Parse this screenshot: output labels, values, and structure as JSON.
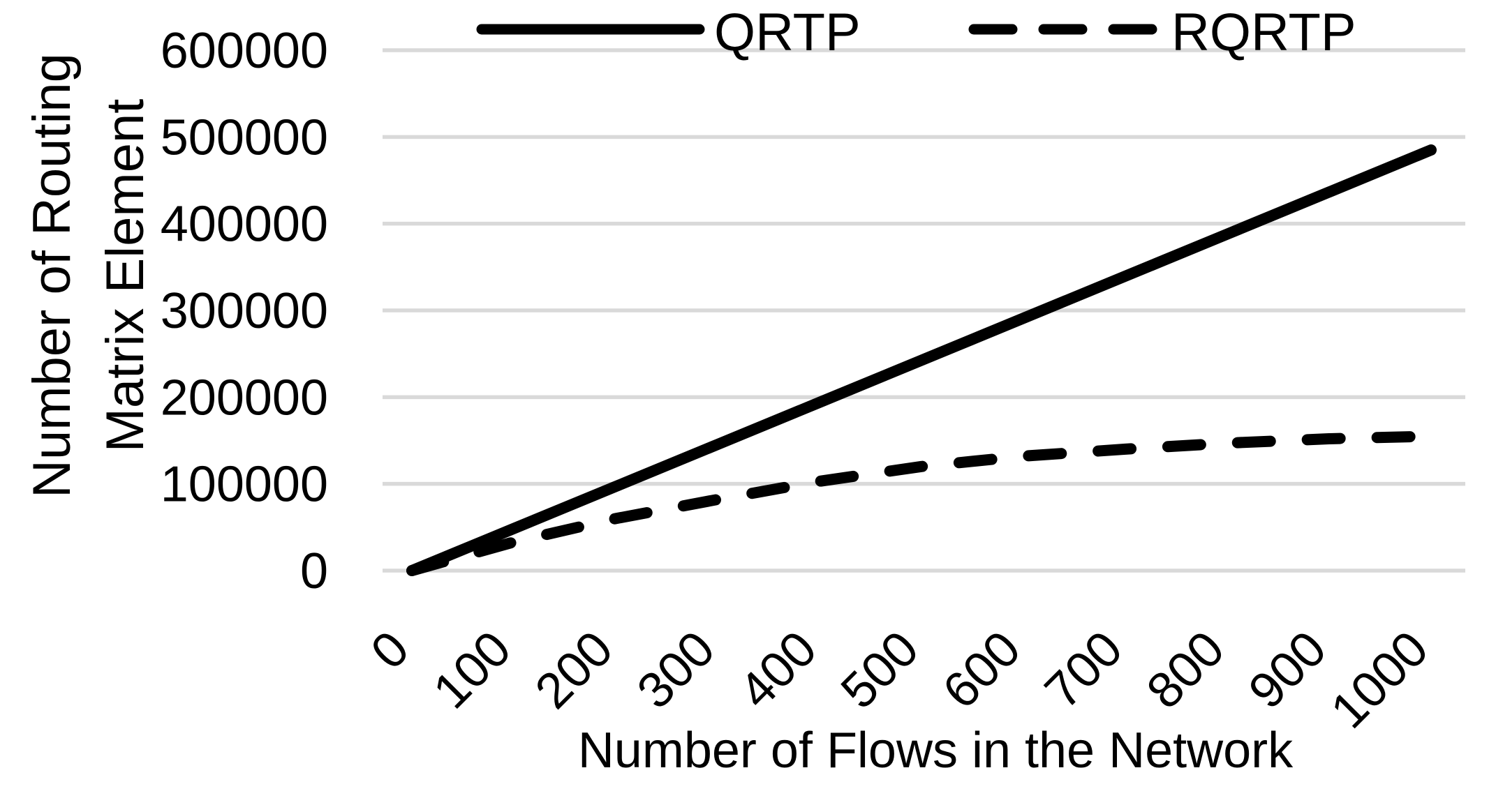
{
  "figure": {
    "background": "#ffffff"
  },
  "colors": {
    "series_stroke": "#000000",
    "gridline": "#d9d9d9",
    "text": "#000000"
  },
  "chart_data": {
    "type": "line",
    "title": "",
    "xlabel": "Number of Flows in the Network",
    "ylabel_lines": [
      "Number of Routing",
      "Matrix Element"
    ],
    "x": [
      0,
      100,
      200,
      300,
      400,
      500,
      600,
      700,
      800,
      900,
      1000
    ],
    "series": [
      {
        "name": "QRTP",
        "line_style": "solid",
        "values": [
          0,
          48500,
          97000,
          145500,
          194000,
          242500,
          291000,
          339500,
          388000,
          436500,
          485000
        ]
      },
      {
        "name": "RQRTP",
        "line_style": "dashed",
        "values": [
          0,
          33000,
          60000,
          82000,
          103000,
          120000,
          132000,
          140000,
          147000,
          152000,
          155000
        ]
      }
    ],
    "values_note": "series values are approximate, read from plotted lines against gridlines",
    "xlim": [
      0,
      1000
    ],
    "ylim": [
      0,
      600000
    ],
    "x_ticks": [
      0,
      100,
      200,
      300,
      400,
      500,
      600,
      700,
      800,
      900,
      1000
    ],
    "y_ticks": [
      0,
      100000,
      200000,
      300000,
      400000,
      500000,
      600000
    ],
    "x_tick_rotation_deg": -45,
    "grid": "horizontal",
    "legend_position": "top"
  }
}
